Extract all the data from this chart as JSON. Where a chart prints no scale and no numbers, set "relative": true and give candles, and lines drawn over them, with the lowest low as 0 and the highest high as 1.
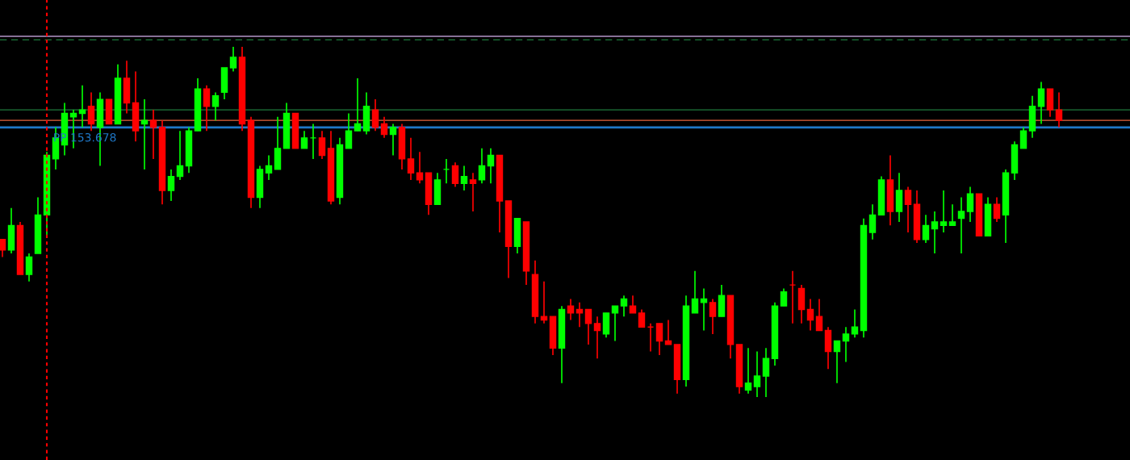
{
  "chart_data": {
    "type": "candlestick",
    "relative": true,
    "categories": [
      null,
      null,
      null,
      null,
      null,
      null,
      null,
      null,
      null,
      null,
      null,
      null,
      null,
      null,
      null,
      null,
      null,
      null,
      null,
      null,
      null,
      null,
      null,
      null,
      null,
      null,
      null,
      null,
      null,
      null,
      null,
      null,
      null,
      null,
      null,
      null,
      null,
      null,
      null,
      null,
      null,
      null,
      null,
      null,
      null,
      null,
      null,
      null,
      null,
      null,
      null,
      null,
      null,
      null,
      null,
      null,
      null,
      null,
      null,
      null,
      null,
      null,
      null,
      null,
      null,
      null,
      null,
      null,
      null,
      null,
      null,
      null,
      null,
      null,
      null,
      null,
      null,
      null,
      null,
      null,
      null,
      null,
      null,
      null,
      null,
      null,
      null,
      null,
      null,
      null,
      null,
      null,
      null,
      null,
      null,
      null,
      null,
      null,
      null,
      null,
      null,
      null,
      null,
      null,
      null,
      null,
      null,
      null,
      null,
      null,
      null,
      null,
      null,
      null,
      null,
      null,
      null,
      null,
      null,
      null
    ],
    "ohlc": [
      [
        0.45,
        0.45,
        0.4,
        0.42
      ],
      [
        0.42,
        0.54,
        0.41,
        0.49
      ],
      [
        0.49,
        0.5,
        0.35,
        0.35
      ],
      [
        0.35,
        0.41,
        0.33,
        0.4
      ],
      [
        0.41,
        0.57,
        0.41,
        0.52
      ],
      [
        0.52,
        0.7,
        0.46,
        0.69
      ],
      [
        0.68,
        0.77,
        0.65,
        0.74
      ],
      [
        0.72,
        0.84,
        0.69,
        0.81
      ],
      [
        0.8,
        0.82,
        0.71,
        0.81
      ],
      [
        0.81,
        0.89,
        0.77,
        0.82
      ],
      [
        0.83,
        0.87,
        0.76,
        0.78
      ],
      [
        0.77,
        0.87,
        0.66,
        0.85
      ],
      [
        0.85,
        0.85,
        0.78,
        0.78
      ],
      [
        0.78,
        0.95,
        0.78,
        0.91
      ],
      [
        0.91,
        0.96,
        0.81,
        0.84
      ],
      [
        0.84,
        0.93,
        0.73,
        0.76
      ],
      [
        0.78,
        0.85,
        0.65,
        0.79
      ],
      [
        0.79,
        0.82,
        0.68,
        0.77
      ],
      [
        0.77,
        0.79,
        0.55,
        0.59
      ],
      [
        0.59,
        0.65,
        0.56,
        0.63
      ],
      [
        0.63,
        0.76,
        0.62,
        0.66
      ],
      [
        0.66,
        0.77,
        0.64,
        0.76
      ],
      [
        0.76,
        0.91,
        0.76,
        0.88
      ],
      [
        0.88,
        0.89,
        0.76,
        0.83
      ],
      [
        0.83,
        0.87,
        0.79,
        0.86
      ],
      [
        0.87,
        0.94,
        0.85,
        0.94
      ],
      [
        0.94,
        1.0,
        0.93,
        0.97
      ],
      [
        0.97,
        1.0,
        0.76,
        0.78
      ],
      [
        0.79,
        0.8,
        0.54,
        0.57
      ],
      [
        0.57,
        0.66,
        0.54,
        0.65
      ],
      [
        0.64,
        0.69,
        0.62,
        0.66
      ],
      [
        0.65,
        0.8,
        0.65,
        0.71
      ],
      [
        0.71,
        0.84,
        0.71,
        0.81
      ],
      [
        0.81,
        0.81,
        0.71,
        0.71
      ],
      [
        0.71,
        0.76,
        0.71,
        0.74
      ],
      [
        0.74,
        0.78,
        0.68,
        0.74
      ],
      [
        0.74,
        0.76,
        0.68,
        0.69
      ],
      [
        0.71,
        0.76,
        0.55,
        0.56
      ],
      [
        0.57,
        0.74,
        0.55,
        0.72
      ],
      [
        0.71,
        0.81,
        0.71,
        0.76
      ],
      [
        0.76,
        0.91,
        0.76,
        0.78
      ],
      [
        0.76,
        0.87,
        0.75,
        0.83
      ],
      [
        0.82,
        0.85,
        0.76,
        0.77
      ],
      [
        0.78,
        0.8,
        0.74,
        0.75
      ],
      [
        0.75,
        0.78,
        0.69,
        0.77
      ],
      [
        0.77,
        0.78,
        0.65,
        0.68
      ],
      [
        0.68,
        0.74,
        0.62,
        0.64
      ],
      [
        0.64,
        0.7,
        0.61,
        0.62
      ],
      [
        0.64,
        0.64,
        0.52,
        0.55
      ],
      [
        0.55,
        0.64,
        0.55,
        0.62
      ],
      [
        0.65,
        0.68,
        0.61,
        0.65
      ],
      [
        0.66,
        0.67,
        0.6,
        0.61
      ],
      [
        0.61,
        0.66,
        0.59,
        0.63
      ],
      [
        0.62,
        0.64,
        0.53,
        0.61
      ],
      [
        0.62,
        0.71,
        0.61,
        0.66
      ],
      [
        0.66,
        0.71,
        0.61,
        0.69
      ],
      [
        0.69,
        0.69,
        0.47,
        0.56
      ],
      [
        0.56,
        0.56,
        0.34,
        0.43
      ],
      [
        0.43,
        0.51,
        0.41,
        0.51
      ],
      [
        0.5,
        0.5,
        0.32,
        0.36
      ],
      [
        0.35,
        0.39,
        0.21,
        0.23
      ],
      [
        0.23,
        0.33,
        0.21,
        0.22
      ],
      [
        0.23,
        0.23,
        0.12,
        0.14
      ],
      [
        0.14,
        0.26,
        0.04,
        0.25
      ],
      [
        0.26,
        0.28,
        0.22,
        0.24
      ],
      [
        0.25,
        0.27,
        0.2,
        0.24
      ],
      [
        0.25,
        0.25,
        0.15,
        0.21
      ],
      [
        0.21,
        0.23,
        0.11,
        0.19
      ],
      [
        0.18,
        0.24,
        0.17,
        0.24
      ],
      [
        0.24,
        0.26,
        0.16,
        0.26
      ],
      [
        0.26,
        0.29,
        0.23,
        0.28
      ],
      [
        0.26,
        0.29,
        0.24,
        0.24
      ],
      [
        0.24,
        0.25,
        0.2,
        0.2
      ],
      [
        0.2,
        0.21,
        0.13,
        0.2
      ],
      [
        0.21,
        0.21,
        0.12,
        0.16
      ],
      [
        0.16,
        0.22,
        0.15,
        0.15
      ],
      [
        0.15,
        0.15,
        0.01,
        0.05
      ],
      [
        0.05,
        0.29,
        0.03,
        0.26
      ],
      [
        0.24,
        0.36,
        0.24,
        0.28
      ],
      [
        0.27,
        0.31,
        0.19,
        0.28
      ],
      [
        0.27,
        0.28,
        0.18,
        0.23
      ],
      [
        0.23,
        0.32,
        0.23,
        0.29
      ],
      [
        0.29,
        0.29,
        0.11,
        0.15
      ],
      [
        0.15,
        0.15,
        0.01,
        0.03
      ],
      [
        0.02,
        0.14,
        0.01,
        0.04
      ],
      [
        0.03,
        0.13,
        0.0,
        0.06
      ],
      [
        0.06,
        0.14,
        0.0,
        0.11
      ],
      [
        0.11,
        0.27,
        0.09,
        0.26
      ],
      [
        0.26,
        0.31,
        0.26,
        0.3
      ],
      [
        0.32,
        0.36,
        0.21,
        0.32
      ],
      [
        0.31,
        0.32,
        0.21,
        0.25
      ],
      [
        0.25,
        0.28,
        0.19,
        0.22
      ],
      [
        0.23,
        0.28,
        0.19,
        0.19
      ],
      [
        0.19,
        0.2,
        0.08,
        0.13
      ],
      [
        0.13,
        0.16,
        0.04,
        0.16
      ],
      [
        0.16,
        0.2,
        0.1,
        0.18
      ],
      [
        0.18,
        0.25,
        0.17,
        0.2
      ],
      [
        0.19,
        0.51,
        0.17,
        0.49
      ],
      [
        0.47,
        0.55,
        0.45,
        0.52
      ],
      [
        0.52,
        0.63,
        0.52,
        0.62
      ],
      [
        0.62,
        0.69,
        0.49,
        0.53
      ],
      [
        0.53,
        0.64,
        0.5,
        0.59
      ],
      [
        0.59,
        0.6,
        0.47,
        0.55
      ],
      [
        0.55,
        0.59,
        0.44,
        0.45
      ],
      [
        0.45,
        0.52,
        0.44,
        0.49
      ],
      [
        0.48,
        0.53,
        0.41,
        0.5
      ],
      [
        0.49,
        0.59,
        0.47,
        0.5
      ],
      [
        0.49,
        0.55,
        0.49,
        0.5
      ],
      [
        0.51,
        0.57,
        0.41,
        0.53
      ],
      [
        0.53,
        0.6,
        0.5,
        0.58
      ],
      [
        0.58,
        0.58,
        0.46,
        0.46
      ],
      [
        0.46,
        0.57,
        0.46,
        0.55
      ],
      [
        0.55,
        0.57,
        0.5,
        0.51
      ],
      [
        0.52,
        0.65,
        0.44,
        0.64
      ],
      [
        0.64,
        0.73,
        0.62,
        0.72
      ],
      [
        0.71,
        0.77,
        0.71,
        0.76
      ],
      [
        0.76,
        0.86,
        0.74,
        0.83
      ],
      [
        0.83,
        0.9,
        0.78,
        0.88
      ],
      [
        0.88,
        0.88,
        0.8,
        0.82
      ],
      [
        0.82,
        0.87,
        0.77,
        0.79
      ]
    ],
    "colors": [
      "#ff0000",
      "#00ff00",
      "#ff0000",
      "#00ff00",
      "#00ff00",
      "#00ff00",
      "#00ff00",
      "#00ff00",
      "#00ff00",
      "#00ff00",
      "#ff0000",
      "#00ff00",
      "#ff0000",
      "#00ff00",
      "#ff0000",
      "#ff0000",
      "#00ff00",
      "#ff0000",
      "#ff0000",
      "#00ff00",
      "#00ff00",
      "#00ff00",
      "#00ff00",
      "#ff0000",
      "#00ff00",
      "#00ff00",
      "#00ff00",
      "#ff0000",
      "#ff0000",
      "#00ff00",
      "#00ff00",
      "#00ff00",
      "#00ff00",
      "#ff0000",
      "#00ff00",
      "#00ff00",
      "#ff0000",
      "#ff0000",
      "#00ff00",
      "#00ff00",
      "#00ff00",
      "#00ff00",
      "#ff0000",
      "#ff0000",
      "#00ff00",
      "#ff0000",
      "#ff0000",
      "#ff0000",
      "#ff0000",
      "#00ff00",
      "#00ff00",
      "#ff0000",
      "#00ff00",
      "#ff0000",
      "#00ff00",
      "#00ff00",
      "#ff0000",
      "#ff0000",
      "#00ff00",
      "#ff0000",
      "#ff0000",
      "#ff0000",
      "#ff0000",
      "#00ff00",
      "#ff0000",
      "#ff0000",
      "#ff0000",
      "#ff0000",
      "#00ff00",
      "#00ff00",
      "#00ff00",
      "#ff0000",
      "#ff0000",
      "#ff0000",
      "#ff0000",
      "#ff0000",
      "#ff0000",
      "#00ff00",
      "#00ff00",
      "#00ff00",
      "#ff0000",
      "#00ff00",
      "#ff0000",
      "#ff0000",
      "#00ff00",
      "#00ff00",
      "#00ff00",
      "#00ff00",
      "#00ff00",
      "#ff0000",
      "#ff0000",
      "#ff0000",
      "#ff0000",
      "#ff0000",
      "#00ff00",
      "#00ff00",
      "#00ff00",
      "#00ff00",
      "#00ff00",
      "#00ff00",
      "#ff0000",
      "#00ff00",
      "#ff0000",
      "#ff0000",
      "#00ff00",
      "#00ff00",
      "#00ff00",
      "#00ff00",
      "#00ff00",
      "#00ff00",
      "#ff0000",
      "#00ff00",
      "#ff0000",
      "#00ff00",
      "#00ff00",
      "#00ff00",
      "#00ff00",
      "#00ff00",
      "#ff0000",
      "#ff0000"
    ],
    "ref_lines": [
      {
        "axis": "y",
        "value": 0.77,
        "label": "PP 153.678",
        "color": "#1f78c8"
      },
      {
        "axis": "y",
        "value": 0.79,
        "label": null,
        "color": "#e8643c"
      },
      {
        "axis": "y",
        "value": 0.82,
        "label": null,
        "color": "#1e7a3c"
      },
      {
        "axis": "y",
        "value": 1.03,
        "label": null,
        "color": "#b496c8"
      },
      {
        "axis": "y",
        "value": 1.02,
        "label": null,
        "color": "#1e7a3c",
        "line_style": "dashed"
      }
    ]
  }
}
